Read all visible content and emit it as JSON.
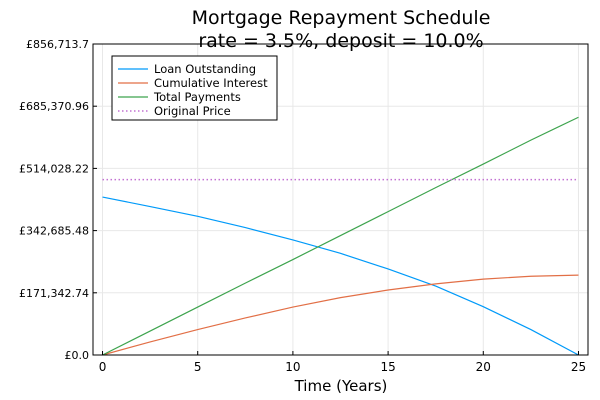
{
  "chart_data": {
    "type": "line",
    "title": "Mortgage Repayment Schedule",
    "subtitle": "rate = 3.5%, deposit = 10.0%",
    "xlabel": "Time (Years)",
    "ylabel": "",
    "xlim": [
      -0.5,
      25.5
    ],
    "ylim": [
      0,
      856713.7
    ],
    "x_ticks": [
      0,
      5,
      10,
      15,
      20,
      25
    ],
    "x_tick_labels": [
      "0",
      "5",
      "10",
      "15",
      "20",
      "25"
    ],
    "y_ticks": [
      0,
      171342.74,
      342685.48,
      514028.22,
      685370.96,
      856713.7
    ],
    "y_tick_labels": [
      "£0.0",
      "£171,342.74",
      "£342,685.48",
      "£514,028.22",
      "£685,370.96",
      "£856,713.7"
    ],
    "grid": true,
    "legend_position": "top-left",
    "x": [
      0,
      2.5,
      5,
      7.5,
      10,
      12.5,
      15,
      17.5,
      20,
      22.5,
      25
    ],
    "series": [
      {
        "name": "Loan Outstanding",
        "color": "#009af9",
        "style": "solid",
        "values": [
          435000,
          409000,
          382000,
          351000,
          317000,
          280000,
          237000,
          190000,
          133000,
          70000,
          0
        ]
      },
      {
        "name": "Cumulative Interest",
        "color": "#e26f46",
        "style": "solid",
        "values": [
          0,
          36000,
          70000,
          102000,
          132000,
          158000,
          179000,
          196000,
          209000,
          217000,
          220000
        ]
      },
      {
        "name": "Total Payments",
        "color": "#3ea44e",
        "style": "solid",
        "values": [
          0,
          66000,
          132000,
          198000,
          263000,
          329000,
          395000,
          461000,
          526000,
          592000,
          655000
        ]
      },
      {
        "name": "Original Price",
        "color": "#c271d2",
        "style": "dotted",
        "values": [
          483000,
          483000,
          483000,
          483000,
          483000,
          483000,
          483000,
          483000,
          483000,
          483000,
          483000
        ]
      }
    ]
  }
}
